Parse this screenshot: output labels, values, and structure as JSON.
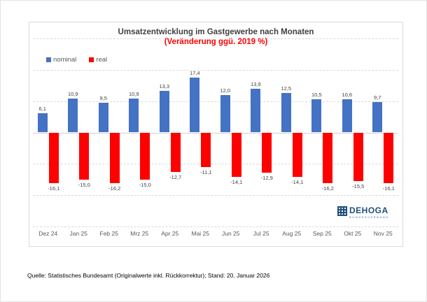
{
  "chart_data": {
    "type": "bar",
    "title": "Umsatzentwicklung im Gastgewerbe nach Monaten",
    "subtitle": "(Veränderung ggü. 2019 %)",
    "categories": [
      "Dez 24",
      "Jan 25",
      "Feb 25",
      "Mrz 25",
      "Apr 25",
      "Mai 25",
      "Jun 25",
      "Jul 25",
      "Aug 25",
      "Sep 25",
      "Okt 25",
      "Nov 25"
    ],
    "series": [
      {
        "name": "nominal",
        "color": "#4472c4",
        "values": [
          6.1,
          10.9,
          9.5,
          10.9,
          13.3,
          17.4,
          12.0,
          13.9,
          12.5,
          10.5,
          10.6,
          9.7
        ],
        "labels": [
          "6,1",
          "10,9",
          "9,5",
          "10,9",
          "13,3",
          "17,4",
          "12,0",
          "13,9",
          "12,5",
          "10,5",
          "10,6",
          "9,7"
        ]
      },
      {
        "name": "real",
        "color": "#ff0000",
        "values": [
          -16.1,
          -15.0,
          -16.2,
          -15.0,
          -12.7,
          -11.1,
          -14.1,
          -12.9,
          -14.1,
          -16.2,
          -15.5,
          -16.1
        ],
        "labels": [
          "-16,1",
          "-15,0",
          "-16,2",
          "-15,0",
          "-12,7",
          "-11,1",
          "-14,1",
          "-12,9",
          "-14,1",
          "-16,2",
          "-15,5",
          "-16,1"
        ]
      }
    ],
    "ylim": [
      -30,
      30
    ],
    "gridline_step": 10,
    "grid": true,
    "y_axis_labels_visible": false,
    "legend_position": "top-left"
  },
  "logo": {
    "name": "DEHOGA",
    "subtext": "BUNDESVERBAND",
    "color": "#1f4e79"
  },
  "footer": {
    "source": "Quelle: Statistisches Bundesamt (Originalwerte inkl. Rückkorrektur); Stand: 20. Januar 2026"
  }
}
